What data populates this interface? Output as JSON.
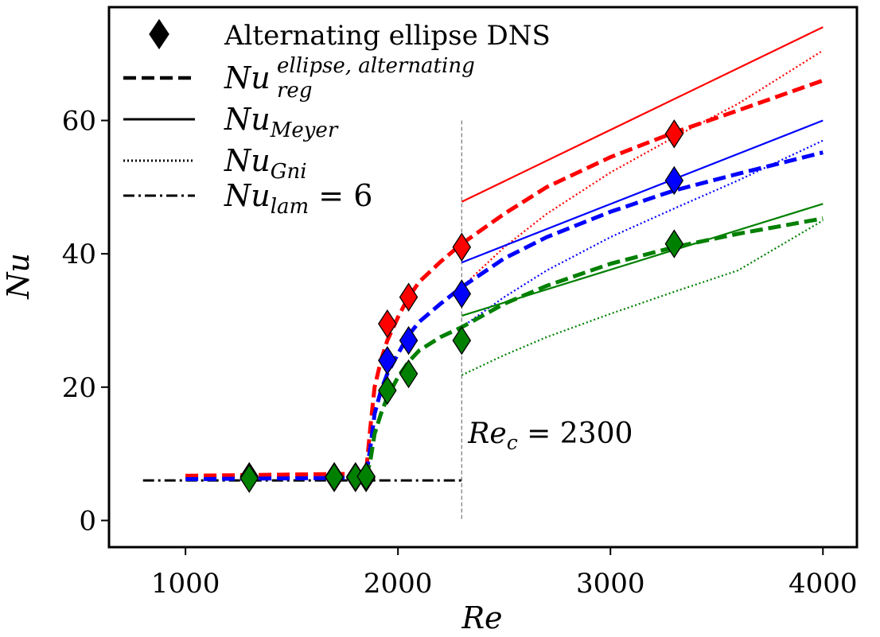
{
  "chart_data": {
    "type": "line",
    "xlabel": "Re",
    "ylabel": "Nu",
    "xlim": [
      640,
      4160
    ],
    "ylim": [
      -4,
      77
    ],
    "xticks": [
      1000,
      2000,
      3000,
      4000
    ],
    "yticks": [
      0,
      20,
      40,
      60
    ],
    "grid": false,
    "legend_position": "top-left",
    "colors": {
      "red": "#ff0000",
      "blue": "#0000ff",
      "green": "#008000",
      "black": "#000000",
      "gray": "#808080"
    },
    "legend": [
      {
        "base": "Alternating ellipse DNS",
        "sub": "",
        "sup": "",
        "style": "diamond"
      },
      {
        "base": "Nu",
        "sub": "reg",
        "sup": "ellipse, alternating",
        "style": "dashed"
      },
      {
        "base": "Nu",
        "sub": "Meyer",
        "sup": "",
        "style": "solid"
      },
      {
        "base": "Nu",
        "sub": "Gni",
        "sup": "",
        "style": "dotted"
      },
      {
        "base": "Nu",
        "sub": "lam",
        "sup": "",
        "suffix": " = 6",
        "style": "dashdot"
      }
    ],
    "annotation": {
      "base": "Re",
      "sub": "c",
      "suffix": " = 2300",
      "x": 2300
    },
    "transition_line": {
      "x": 2300,
      "y_range": [
        0,
        60
      ]
    },
    "laminar_line": {
      "x": [
        800,
        2300
      ],
      "y": 6
    },
    "dns_points": [
      {
        "color": "red",
        "x": [
          1300,
          1700,
          1800,
          1850,
          1950,
          2050,
          2300,
          3300
        ],
        "y": [
          6.6,
          6.6,
          6.6,
          6.6,
          29.5,
          33.5,
          41,
          58
        ]
      },
      {
        "color": "blue",
        "x": [
          1300,
          1700,
          1800,
          1850,
          1950,
          2050,
          2300,
          3300
        ],
        "y": [
          6.4,
          6.4,
          6.4,
          6.4,
          24,
          27,
          34,
          51
        ]
      },
      {
        "color": "green",
        "x": [
          1300,
          1700,
          1800,
          1850,
          1950,
          2050,
          2300,
          3300
        ],
        "y": [
          6.3,
          6.5,
          6.5,
          6.6,
          19.5,
          22,
          27,
          41.5
        ]
      }
    ],
    "regression_curves": [
      {
        "color": "red",
        "x": [
          1000,
          1800,
          1850,
          1870,
          1890,
          1920,
          1950,
          2000,
          2050,
          2100,
          2200,
          2300,
          2500,
          2700,
          3000,
          3300,
          3600,
          4000
        ],
        "y": [
          6.7,
          7.0,
          7.2,
          14,
          20,
          24,
          27,
          30.5,
          33.5,
          35.8,
          38.8,
          41.5,
          46,
          50,
          54.5,
          58.2,
          61.5,
          66
        ]
      },
      {
        "color": "blue",
        "x": [
          1000,
          1800,
          1850,
          1870,
          1890,
          1920,
          1950,
          2000,
          2050,
          2100,
          2200,
          2300,
          2500,
          2700,
          3000,
          3300,
          3600,
          4000
        ],
        "y": [
          6.2,
          6.4,
          6.6,
          11,
          16,
          19.5,
          22,
          25,
          27.8,
          29.8,
          32.5,
          35,
          39.3,
          42.5,
          46.3,
          49.5,
          52,
          55.2
        ]
      },
      {
        "color": "green",
        "x": [
          1850,
          1870,
          1890,
          1920,
          1950,
          2000,
          2050,
          2100,
          2200,
          2300,
          2500,
          2700,
          3000,
          3300,
          3600,
          4000
        ],
        "y": [
          6.5,
          9,
          13,
          16,
          18.5,
          21.5,
          23.8,
          25.5,
          27.5,
          29,
          32.5,
          35.2,
          38.5,
          41,
          43,
          45.3
        ]
      }
    ],
    "meyer_lines": [
      {
        "color": "red",
        "x": [
          2300,
          4000
        ],
        "y": [
          47.8,
          74
        ]
      },
      {
        "color": "blue",
        "x": [
          2300,
          4000
        ],
        "y": [
          38.7,
          60
        ]
      },
      {
        "color": "green",
        "x": [
          2300,
          4000
        ],
        "y": [
          30.7,
          47.5
        ]
      }
    ],
    "gnielinski_lines": [
      {
        "color": "red",
        "x": [
          2300,
          2500,
          2700,
          3000,
          3300,
          3600,
          4000
        ],
        "y": [
          35,
          41,
          46,
          52.2,
          57.5,
          62.5,
          70.5
        ]
      },
      {
        "color": "blue",
        "x": [
          2300,
          2500,
          2700,
          3000,
          3300,
          3600,
          4000
        ],
        "y": [
          29,
          33.5,
          37.5,
          42.5,
          46.8,
          51,
          57
        ]
      },
      {
        "color": "green",
        "x": [
          2300,
          2500,
          2700,
          3000,
          3300,
          3600,
          4000
        ],
        "y": [
          21.8,
          24.8,
          27.5,
          31,
          34.3,
          37.5,
          45
        ]
      }
    ]
  }
}
